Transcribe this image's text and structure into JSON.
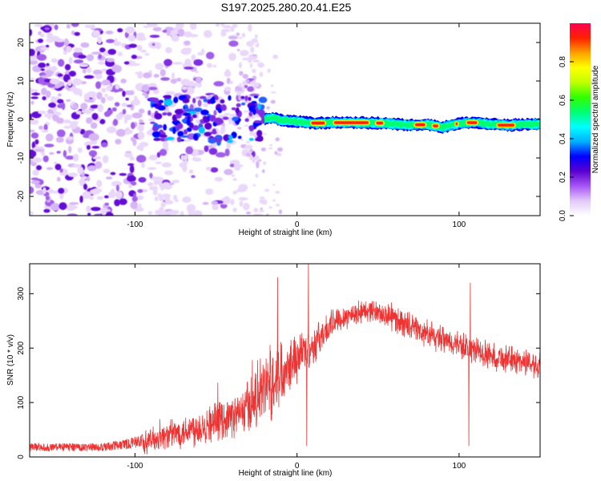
{
  "title": "S197.2025.280.20.41.E25",
  "chart_data": [
    {
      "type": "heatmap",
      "xlabel": "Height of straight line (km)",
      "ylabel": "Frequency (Hz)",
      "xlim": [
        -165,
        150
      ],
      "ylim": [
        -25,
        25
      ],
      "xticks": [
        "-100",
        "0",
        "100"
      ],
      "xtick_values": [
        -100,
        0,
        100
      ],
      "yticks": [
        "-20",
        "-10",
        "0",
        "10",
        "20"
      ],
      "ytick_values": [
        -20,
        -10,
        0,
        10,
        20
      ],
      "colorbar": {
        "label": "Normalized spectral amplitude",
        "range": [
          0,
          1
        ],
        "ticks": [
          "0.0",
          "0.2",
          "0.4",
          "0.6",
          "0.8"
        ],
        "tick_values": [
          0.0,
          0.2,
          0.4,
          0.6,
          0.8
        ],
        "colors": [
          "#ffffff",
          "#e2c9f8",
          "#a855f7",
          "#5a00d0",
          "#0000ff",
          "#00b0ff",
          "#00ffff",
          "#00ff70",
          "#30ff00",
          "#c0ff00",
          "#ffff00",
          "#ffa000",
          "#ff2000",
          "#ff0050"
        ]
      },
      "ridge": [
        {
          "x": -20,
          "f": 0.0
        },
        {
          "x": -15,
          "f": 0.5
        },
        {
          "x": -10,
          "f": -0.2
        },
        {
          "x": 0,
          "f": -0.5
        },
        {
          "x": 10,
          "f": -1.0
        },
        {
          "x": 20,
          "f": -0.8
        },
        {
          "x": 30,
          "f": -0.8
        },
        {
          "x": 40,
          "f": -0.9
        },
        {
          "x": 50,
          "f": -0.9
        },
        {
          "x": 60,
          "f": -1.2
        },
        {
          "x": 70,
          "f": -1.5
        },
        {
          "x": 80,
          "f": -1.3
        },
        {
          "x": 90,
          "f": -2.0
        },
        {
          "x": 100,
          "f": -1.0
        },
        {
          "x": 110,
          "f": -0.8
        },
        {
          "x": 120,
          "f": -1.3
        },
        {
          "x": 130,
          "f": -1.5
        },
        {
          "x": 140,
          "f": -1.3
        },
        {
          "x": 150,
          "f": -1.2
        }
      ]
    },
    {
      "type": "line",
      "xlabel": "Height of straight line (km)",
      "ylabel": "SNR (10 * v/v)",
      "xlim": [
        -165,
        150
      ],
      "ylim": [
        0,
        355
      ],
      "xticks": [
        "-100",
        "0",
        "100"
      ],
      "xtick_values": [
        -100,
        0,
        100
      ],
      "yticks": [
        "0",
        "100",
        "200",
        "300"
      ],
      "ytick_values": [
        0,
        100,
        200,
        300
      ],
      "color": "#ee3333",
      "envelope": [
        {
          "x": -165,
          "base": 15,
          "noise": 12
        },
        {
          "x": -120,
          "base": 15,
          "noise": 12
        },
        {
          "x": -100,
          "base": 22,
          "noise": 18
        },
        {
          "x": -80,
          "base": 40,
          "noise": 25
        },
        {
          "x": -60,
          "base": 55,
          "noise": 35
        },
        {
          "x": -45,
          "base": 70,
          "noise": 35
        },
        {
          "x": -35,
          "base": 80,
          "noise": 40
        },
        {
          "x": -25,
          "base": 110,
          "noise": 60
        },
        {
          "x": -15,
          "base": 140,
          "noise": 70
        },
        {
          "x": -5,
          "base": 175,
          "noise": 50
        },
        {
          "x": 10,
          "base": 205,
          "noise": 35
        },
        {
          "x": 25,
          "base": 255,
          "noise": 25
        },
        {
          "x": 45,
          "base": 270,
          "noise": 20
        },
        {
          "x": 60,
          "base": 255,
          "noise": 25
        },
        {
          "x": 80,
          "base": 225,
          "noise": 25
        },
        {
          "x": 100,
          "base": 205,
          "noise": 25
        },
        {
          "x": 120,
          "base": 185,
          "noise": 25
        },
        {
          "x": 150,
          "base": 170,
          "noise": 25
        }
      ],
      "spikes": [
        {
          "x": -12,
          "y": 330
        },
        {
          "x": 6,
          "y": 20
        },
        {
          "x": 7,
          "y": 355
        },
        {
          "x": 106,
          "y": 20
        },
        {
          "x": 107,
          "y": 320
        }
      ]
    }
  ]
}
